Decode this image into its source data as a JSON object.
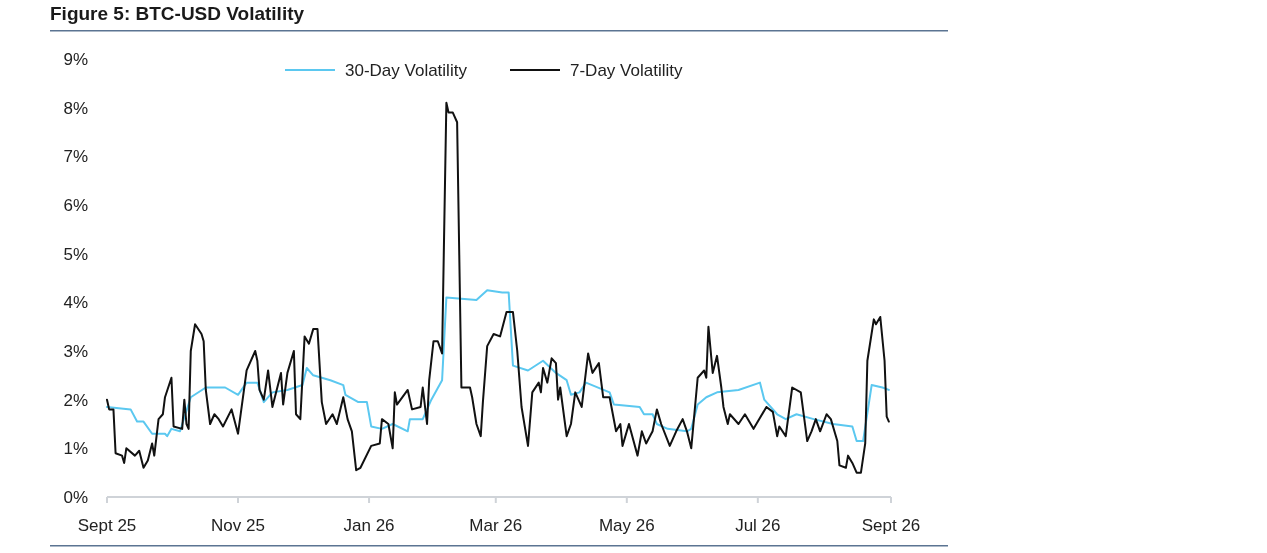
{
  "chart_data": {
    "type": "line",
    "title": "Figure 5: BTC-USD Volatility",
    "xlim": [
      "2025-09-01",
      "2026-09-01"
    ],
    "xticks": [
      {
        "value": "2025-09-01",
        "label": "Sept 25"
      },
      {
        "value": "2025-11-01",
        "label": "Nov 25"
      },
      {
        "value": "2026-01-01",
        "label": "Jan 26"
      },
      {
        "value": "2026-03-01",
        "label": "Mar 26"
      },
      {
        "value": "2026-05-01",
        "label": "May 26"
      },
      {
        "value": "2026-07-01",
        "label": "Jul 26"
      },
      {
        "value": "2026-09-01",
        "label": "Sept 26"
      }
    ],
    "ylim": [
      0,
      9
    ],
    "yticks": [
      {
        "value": 0,
        "label": "0%"
      },
      {
        "value": 1,
        "label": "1%"
      },
      {
        "value": 2,
        "label": "2%"
      },
      {
        "value": 3,
        "label": "3%"
      },
      {
        "value": 4,
        "label": "4%"
      },
      {
        "value": 5,
        "label": "5%"
      },
      {
        "value": 6,
        "label": "6%"
      },
      {
        "value": 7,
        "label": "7%"
      },
      {
        "value": 8,
        "label": "8%"
      },
      {
        "value": 9,
        "label": "9%"
      }
    ],
    "grid": false,
    "legend": "top",
    "marker": "none",
    "line_style": "solid",
    "series": [
      {
        "name": "30-Day Volatility",
        "color": "#5bc8f0",
        "x": [
          "2025-09-01",
          "2025-09-12",
          "2025-09-15",
          "2025-09-18",
          "2025-09-22",
          "2025-09-28",
          "2025-09-29",
          "2025-10-01",
          "2025-10-05",
          "2025-10-10",
          "2025-10-17",
          "2025-10-26",
          "2025-11-01",
          "2025-11-05",
          "2025-11-10",
          "2025-11-13",
          "2025-11-17",
          "2025-11-24",
          "2025-12-01",
          "2025-12-03",
          "2025-12-06",
          "2025-12-14",
          "2025-12-20",
          "2025-12-21",
          "2025-12-27",
          "2025-12-31",
          "2026-01-02",
          "2026-01-07",
          "2026-01-12",
          "2026-01-19",
          "2026-01-20",
          "2026-01-26",
          "2026-01-30",
          "2026-02-04",
          "2026-02-06",
          "2026-02-20",
          "2026-02-25",
          "2026-03-04",
          "2026-03-07",
          "2026-03-09",
          "2026-03-16",
          "2026-03-23",
          "2026-03-29",
          "2026-04-03",
          "2026-04-05",
          "2026-04-09",
          "2026-04-12",
          "2026-04-23",
          "2026-04-25",
          "2026-05-07",
          "2026-05-09",
          "2026-05-13",
          "2026-05-15",
          "2026-05-20",
          "2026-05-29",
          "2026-05-31",
          "2026-06-03",
          "2026-06-07",
          "2026-06-12",
          "2026-06-22",
          "2026-07-02",
          "2026-07-04",
          "2026-07-10",
          "2026-07-14",
          "2026-07-19",
          "2026-07-27",
          "2026-08-05",
          "2026-08-14",
          "2026-08-16",
          "2026-08-19",
          "2026-08-23",
          "2026-08-28",
          "2026-08-31"
        ],
        "values": [
          1.85,
          1.8,
          1.55,
          1.55,
          1.3,
          1.3,
          1.25,
          1.4,
          1.35,
          2.05,
          2.25,
          2.25,
          2.1,
          2.35,
          2.35,
          1.95,
          2.15,
          2.2,
          2.3,
          2.65,
          2.5,
          2.4,
          2.3,
          2.1,
          1.95,
          1.95,
          1.45,
          1.4,
          1.5,
          1.35,
          1.6,
          1.6,
          2.0,
          2.4,
          4.1,
          4.05,
          4.25,
          4.2,
          4.2,
          2.7,
          2.6,
          2.8,
          2.55,
          2.4,
          2.1,
          2.15,
          2.35,
          2.15,
          1.9,
          1.85,
          1.7,
          1.7,
          1.5,
          1.4,
          1.35,
          1.4,
          1.9,
          2.05,
          2.15,
          2.2,
          2.35,
          2.0,
          1.7,
          1.6,
          1.7,
          1.6,
          1.5,
          1.45,
          1.15,
          1.15,
          2.3,
          2.25,
          2.2
        ]
      },
      {
        "name": "7-Day Volatility",
        "color": "#111111",
        "x": [
          "2025-09-01",
          "2025-09-02",
          "2025-09-04",
          "2025-09-05",
          "2025-09-08",
          "2025-09-09",
          "2025-09-10",
          "2025-09-14",
          "2025-09-16",
          "2025-09-18",
          "2025-09-20",
          "2025-09-22",
          "2025-09-23",
          "2025-09-25",
          "2025-09-27",
          "2025-09-28",
          "2025-10-01",
          "2025-10-02",
          "2025-10-06",
          "2025-10-07",
          "2025-10-08",
          "2025-10-09",
          "2025-10-10",
          "2025-10-12",
          "2025-10-15",
          "2025-10-16",
          "2025-10-17",
          "2025-10-19",
          "2025-10-21",
          "2025-10-23",
          "2025-10-25",
          "2025-10-29",
          "2025-11-01",
          "2025-11-05",
          "2025-11-09",
          "2025-11-10",
          "2025-11-11",
          "2025-11-13",
          "2025-11-15",
          "2025-11-17",
          "2025-11-21",
          "2025-11-22",
          "2025-11-24",
          "2025-11-27",
          "2025-11-28",
          "2025-11-30",
          "2025-12-02",
          "2025-12-04",
          "2025-12-06",
          "2025-12-08",
          "2025-12-10",
          "2025-12-12",
          "2025-12-15",
          "2025-12-17",
          "2025-12-20",
          "2025-12-22",
          "2025-12-24",
          "2025-12-26",
          "2025-12-28",
          "2026-01-02",
          "2026-01-06",
          "2026-01-07",
          "2026-01-10",
          "2026-01-12",
          "2026-01-13",
          "2026-01-14",
          "2026-01-19",
          "2026-01-21",
          "2026-01-25",
          "2026-01-26",
          "2026-01-28",
          "2026-01-29",
          "2026-01-31",
          "2026-02-02",
          "2026-02-04",
          "2026-02-06",
          "2026-02-07",
          "2026-02-09",
          "2026-02-11",
          "2026-02-13",
          "2026-02-17",
          "2026-02-18",
          "2026-02-20",
          "2026-02-22",
          "2026-02-23",
          "2026-02-25",
          "2026-02-28",
          "2026-03-03",
          "2026-03-06",
          "2026-03-09",
          "2026-03-11",
          "2026-03-13",
          "2026-03-16",
          "2026-03-18",
          "2026-03-21",
          "2026-03-22",
          "2026-03-23",
          "2026-03-25",
          "2026-03-27",
          "2026-03-29",
          "2026-03-30",
          "2026-03-31",
          "2026-04-03",
          "2026-04-05",
          "2026-04-07",
          "2026-04-10",
          "2026-04-13",
          "2026-04-15",
          "2026-04-18",
          "2026-04-20",
          "2026-04-23",
          "2026-04-26",
          "2026-04-28",
          "2026-04-29",
          "2026-05-02",
          "2026-05-06",
          "2026-05-08",
          "2026-05-10",
          "2026-05-13",
          "2026-05-15",
          "2026-05-17",
          "2026-05-21",
          "2026-05-24",
          "2026-05-27",
          "2026-05-29",
          "2026-05-31",
          "2026-06-03",
          "2026-06-06",
          "2026-06-07",
          "2026-06-08",
          "2026-06-10",
          "2026-06-12",
          "2026-06-14",
          "2026-06-15",
          "2026-06-17",
          "2026-06-18",
          "2026-06-22",
          "2026-06-25",
          "2026-06-29",
          "2026-07-05",
          "2026-07-08",
          "2026-07-10",
          "2026-07-11",
          "2026-07-14",
          "2026-07-17",
          "2026-07-21",
          "2026-07-24",
          "2026-07-26",
          "2026-07-28",
          "2026-07-30",
          "2026-08-02",
          "2026-08-04",
          "2026-08-07",
          "2026-08-08",
          "2026-08-11",
          "2026-08-12",
          "2026-08-14",
          "2026-08-16",
          "2026-08-18",
          "2026-08-20",
          "2026-08-21",
          "2026-08-24",
          "2026-08-25",
          "2026-08-27",
          "2026-08-29",
          "2026-08-30",
          "2026-08-31"
        ],
        "values": [
          2.0,
          1.8,
          1.8,
          0.9,
          0.85,
          0.7,
          1.0,
          0.85,
          0.95,
          0.6,
          0.75,
          1.1,
          0.85,
          1.6,
          1.7,
          2.05,
          2.45,
          1.45,
          1.4,
          2.0,
          1.5,
          1.4,
          3.0,
          3.55,
          3.35,
          3.2,
          2.2,
          1.5,
          1.7,
          1.6,
          1.45,
          1.8,
          1.3,
          2.6,
          3.0,
          2.8,
          2.2,
          2.0,
          2.6,
          1.85,
          2.55,
          1.9,
          2.55,
          3.0,
          1.7,
          1.6,
          3.3,
          3.15,
          3.45,
          3.45,
          1.95,
          1.5,
          1.7,
          1.5,
          2.05,
          1.6,
          1.35,
          0.55,
          0.6,
          1.05,
          1.1,
          1.6,
          1.5,
          1.0,
          2.15,
          1.9,
          2.2,
          1.8,
          1.85,
          2.25,
          1.5,
          2.4,
          3.2,
          3.2,
          2.95,
          8.1,
          7.9,
          7.9,
          7.7,
          2.25,
          2.25,
          2.05,
          1.5,
          1.25,
          1.95,
          3.1,
          3.35,
          3.3,
          3.8,
          3.8,
          3.0,
          1.85,
          1.05,
          2.15,
          2.35,
          2.15,
          2.65,
          2.35,
          2.85,
          2.75,
          2.0,
          2.25,
          1.25,
          1.5,
          2.15,
          1.85,
          2.95,
          2.55,
          2.75,
          2.05,
          2.05,
          1.35,
          1.5,
          1.05,
          1.5,
          0.85,
          1.35,
          1.1,
          1.35,
          1.8,
          1.5,
          1.05,
          1.35,
          1.6,
          1.35,
          1.0,
          2.45,
          2.6,
          2.45,
          3.5,
          2.55,
          2.9,
          2.25,
          1.85,
          1.5,
          1.7,
          1.5,
          1.7,
          1.4,
          1.85,
          1.75,
          1.25,
          1.45,
          1.25,
          2.25,
          2.15,
          1.15,
          1.35,
          1.6,
          1.35,
          1.7,
          1.6,
          1.15,
          0.65,
          0.6,
          0.85,
          0.7,
          0.5,
          0.5,
          1.1,
          2.8,
          3.65,
          3.55,
          3.7,
          2.8,
          1.65,
          1.55
        ]
      }
    ]
  }
}
